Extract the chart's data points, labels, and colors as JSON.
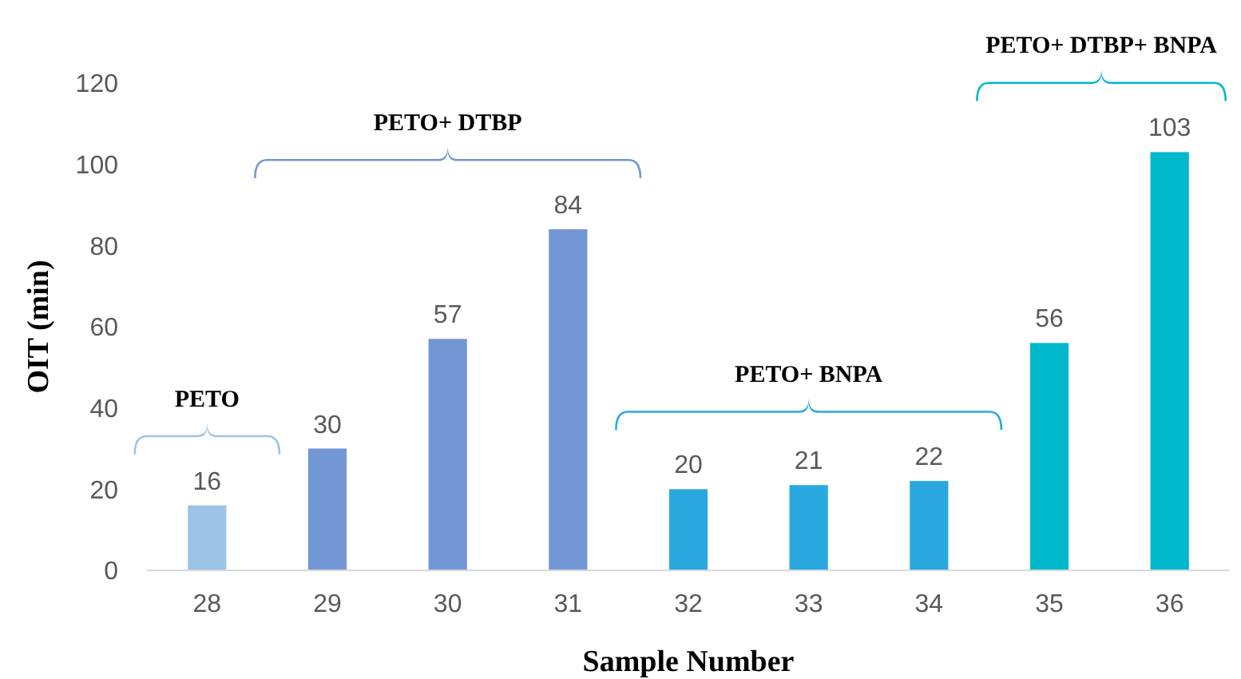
{
  "chart_data": {
    "type": "bar",
    "xlabel": "Sample Number",
    "ylabel": "OIT (min)",
    "categories": [
      "28",
      "29",
      "30",
      "31",
      "32",
      "33",
      "34",
      "35",
      "36"
    ],
    "values": [
      16,
      30,
      57,
      84,
      20,
      21,
      22,
      56,
      103
    ],
    "colors": [
      "#9dc3e6",
      "#7396d4",
      "#7396d4",
      "#7396d4",
      "#29a8e0",
      "#29a8e0",
      "#29a8e0",
      "#00b8cc",
      "#00b8cc"
    ],
    "ylim": [
      0,
      120
    ],
    "yticks": [
      0,
      20,
      40,
      60,
      80,
      100,
      120
    ],
    "grid": false,
    "data_labels": true,
    "annotations": [
      "PETO",
      "PETO+ DTBP",
      "PETO+ BNPA",
      "PETO+ DTBP+ BNPA"
    ]
  }
}
